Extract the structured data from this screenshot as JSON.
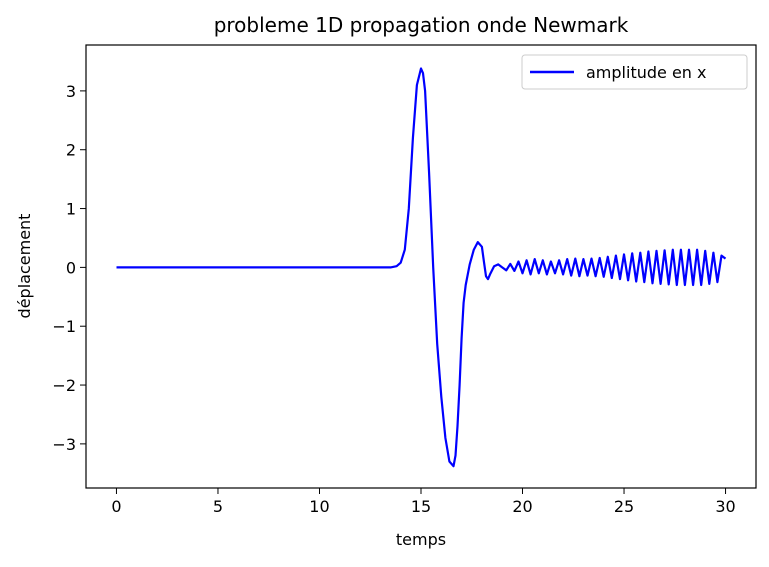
{
  "chart_data": {
    "type": "line",
    "title": "probleme 1D propagation onde Newmark",
    "xlabel": "temps",
    "ylabel": "déplacement",
    "xlim": [
      -1.5,
      31.5
    ],
    "ylim": [
      -3.75,
      3.78
    ],
    "xticks": [
      "0",
      "5",
      "10",
      "15",
      "20",
      "25",
      "30"
    ],
    "yticks": [
      "3",
      "2",
      "1",
      "0",
      "−1",
      "−2",
      "−3"
    ],
    "xtick_values": [
      0,
      5,
      10,
      15,
      20,
      25,
      30
    ],
    "ytick_values": [
      3,
      2,
      1,
      0,
      -1,
      -2,
      -3
    ],
    "grid": false,
    "legend_position": "top-right",
    "series": [
      {
        "name": "amplitude en x",
        "color": "#0000ff",
        "x": [
          0,
          2,
          4,
          6,
          8,
          10,
          12,
          13,
          13.5,
          13.8,
          14.0,
          14.2,
          14.4,
          14.6,
          14.8,
          15.0,
          15.1,
          15.2,
          15.4,
          15.6,
          15.8,
          16.0,
          16.2,
          16.4,
          16.6,
          16.7,
          16.8,
          16.9,
          17.0,
          17.1,
          17.2,
          17.4,
          17.6,
          17.8,
          18.0,
          18.1,
          18.2,
          18.3,
          18.4,
          18.6,
          18.8,
          19.0,
          19.2,
          19.4,
          19.6,
          19.8,
          20.0,
          20.2,
          20.4,
          20.6,
          20.8,
          21.0,
          21.2,
          21.4,
          21.6,
          21.8,
          22.0,
          22.2,
          22.4,
          22.6,
          22.8,
          23.0,
          23.2,
          23.4,
          23.6,
          23.8,
          24.0,
          24.2,
          24.4,
          24.6,
          24.8,
          25.0,
          25.2,
          25.4,
          25.6,
          25.8,
          26.0,
          26.2,
          26.4,
          26.6,
          26.8,
          27.0,
          27.2,
          27.4,
          27.6,
          27.8,
          28.0,
          28.2,
          28.4,
          28.6,
          28.8,
          29.0,
          29.2,
          29.4,
          29.6,
          29.8,
          30.0
        ],
        "y": [
          0,
          0,
          0,
          0,
          0,
          0,
          0,
          0,
          0,
          0.02,
          0.08,
          0.3,
          1.0,
          2.2,
          3.1,
          3.38,
          3.3,
          3.0,
          1.6,
          0.0,
          -1.3,
          -2.2,
          -2.9,
          -3.3,
          -3.38,
          -3.2,
          -2.7,
          -2.0,
          -1.2,
          -0.6,
          -0.3,
          0.05,
          0.3,
          0.43,
          0.35,
          0.1,
          -0.15,
          -0.2,
          -0.12,
          0.02,
          0.05,
          0.0,
          -0.05,
          0.06,
          -0.06,
          0.1,
          -0.1,
          0.12,
          -0.12,
          0.14,
          -0.1,
          0.12,
          -0.12,
          0.1,
          -0.1,
          0.12,
          -0.12,
          0.14,
          -0.14,
          0.15,
          -0.15,
          0.14,
          -0.14,
          0.15,
          -0.15,
          0.16,
          -0.16,
          0.18,
          -0.18,
          0.2,
          -0.2,
          0.22,
          -0.22,
          0.24,
          -0.24,
          0.25,
          -0.25,
          0.27,
          -0.27,
          0.28,
          -0.28,
          0.29,
          -0.29,
          0.3,
          -0.3,
          0.3,
          -0.3,
          0.3,
          -0.3,
          0.3,
          -0.3,
          0.28,
          -0.28,
          0.25,
          -0.25,
          0.2,
          0.15
        ]
      }
    ]
  }
}
